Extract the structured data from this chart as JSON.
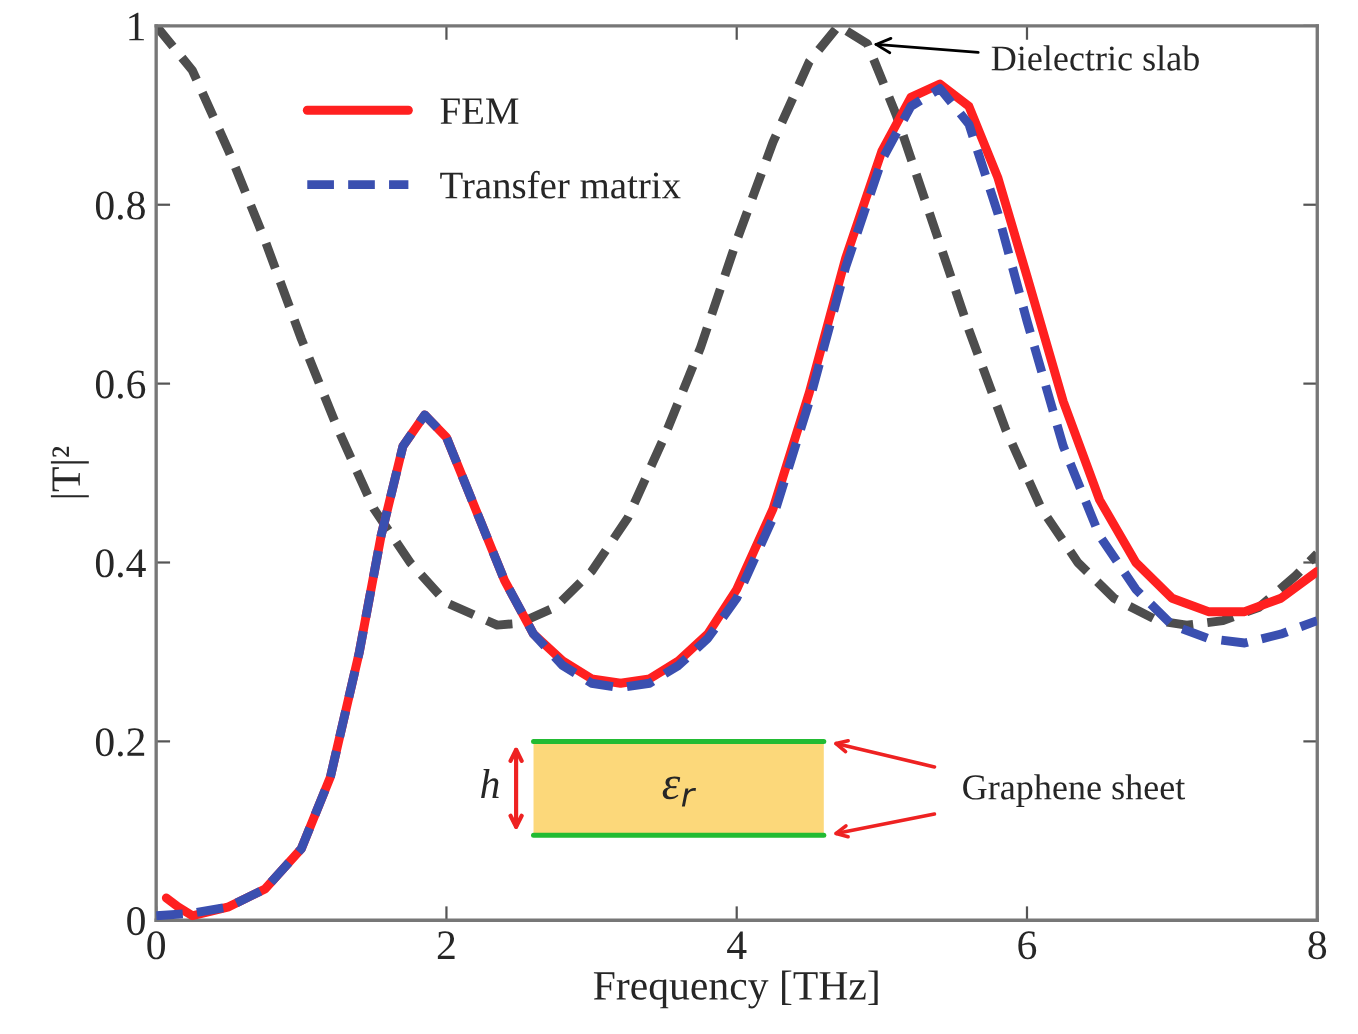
{
  "chart_data": {
    "type": "line",
    "xlabel": "Frequency [THz]",
    "ylabel": "|T|²",
    "xlim": [
      0,
      8
    ],
    "ylim": [
      0,
      1
    ],
    "xticks": [
      0,
      2,
      4,
      6,
      8
    ],
    "yticks": [
      0,
      0.2,
      0.4,
      0.6,
      0.8,
      1
    ],
    "grid": false,
    "legend": "top left",
    "marker": "none",
    "series": [
      {
        "name": "FEM",
        "color": "#ff2020",
        "line_style": "solid",
        "x": [
          0.07,
          0.15,
          0.25,
          0.5,
          0.75,
          1.0,
          1.2,
          1.4,
          1.55,
          1.7,
          1.85,
          2.0,
          2.2,
          2.4,
          2.6,
          2.8,
          3.0,
          3.2,
          3.4,
          3.6,
          3.8,
          4.0,
          4.25,
          4.5,
          4.75,
          5.0,
          5.2,
          5.4,
          5.6,
          5.8,
          6.0,
          6.25,
          6.5,
          6.75,
          7.0,
          7.25,
          7.5,
          7.75,
          8.0
        ],
        "values": [
          0.025,
          0.015,
          0.005,
          0.015,
          0.035,
          0.08,
          0.16,
          0.3,
          0.43,
          0.53,
          0.565,
          0.54,
          0.46,
          0.38,
          0.32,
          0.29,
          0.27,
          0.265,
          0.27,
          0.29,
          0.32,
          0.37,
          0.46,
          0.59,
          0.74,
          0.86,
          0.92,
          0.935,
          0.91,
          0.83,
          0.72,
          0.58,
          0.47,
          0.4,
          0.36,
          0.345,
          0.345,
          0.36,
          0.39
        ]
      },
      {
        "name": "Transfer matrix",
        "color": "#3a4fb0",
        "line_style": "dashed",
        "x": [
          0,
          0.25,
          0.5,
          0.75,
          1.0,
          1.2,
          1.4,
          1.55,
          1.7,
          1.85,
          2.0,
          2.2,
          2.4,
          2.6,
          2.8,
          3.0,
          3.2,
          3.4,
          3.6,
          3.8,
          4.0,
          4.25,
          4.5,
          4.75,
          5.0,
          5.2,
          5.4,
          5.6,
          5.8,
          6.0,
          6.25,
          6.5,
          6.75,
          7.0,
          7.25,
          7.5,
          7.75,
          8.0
        ],
        "values": [
          0.005,
          0.008,
          0.015,
          0.035,
          0.08,
          0.16,
          0.3,
          0.43,
          0.53,
          0.565,
          0.54,
          0.46,
          0.38,
          0.32,
          0.285,
          0.265,
          0.26,
          0.265,
          0.285,
          0.315,
          0.36,
          0.45,
          0.58,
          0.73,
          0.85,
          0.91,
          0.93,
          0.89,
          0.79,
          0.67,
          0.53,
          0.43,
          0.37,
          0.33,
          0.315,
          0.31,
          0.32,
          0.335
        ]
      },
      {
        "color": "#4d4d4d",
        "line_style": "dashed",
        "x": [
          0,
          0.25,
          0.5,
          0.75,
          1.0,
          1.25,
          1.5,
          1.75,
          2.0,
          2.35,
          2.5,
          2.75,
          3.0,
          3.25,
          3.5,
          3.75,
          4.0,
          4.25,
          4.5,
          4.7,
          4.9,
          5.1,
          5.35,
          5.6,
          5.85,
          6.1,
          6.35,
          6.6,
          6.9,
          7.1,
          7.35,
          7.6,
          7.85,
          8.0
        ],
        "values": [
          1.0,
          0.95,
          0.86,
          0.76,
          0.65,
          0.55,
          0.46,
          0.4,
          0.355,
          0.33,
          0.332,
          0.35,
          0.39,
          0.45,
          0.54,
          0.64,
          0.76,
          0.87,
          0.96,
          1.0,
          0.98,
          0.9,
          0.78,
          0.66,
          0.55,
          0.46,
          0.4,
          0.36,
          0.335,
          0.33,
          0.335,
          0.35,
          0.385,
          0.41
        ]
      }
    ],
    "annotations": [
      "h",
      "ε$_{r}$",
      "Graphene sheet",
      {
        "text": "Dielectric slab",
        "x": 4.9,
        "y": 0.98
      }
    ]
  }
}
